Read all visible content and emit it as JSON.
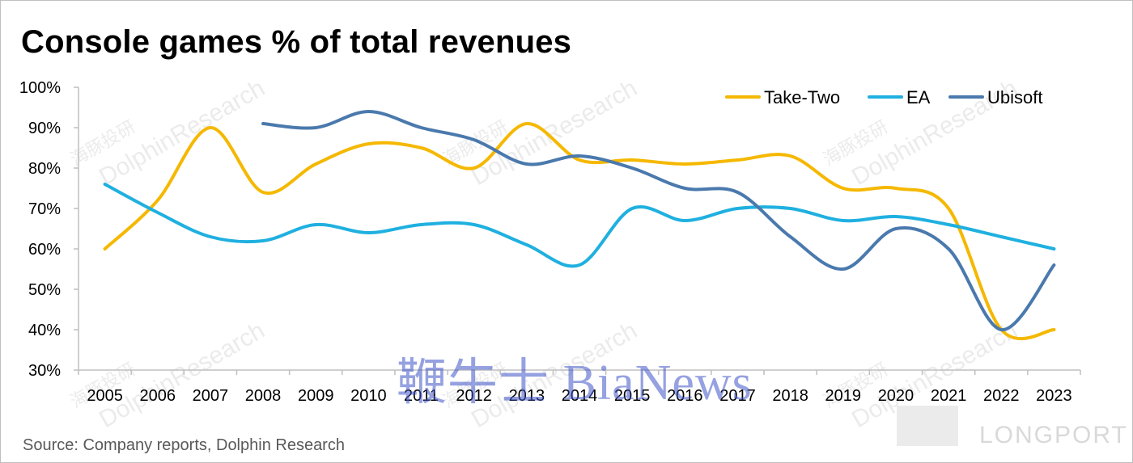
{
  "title": "Console games % of total revenues",
  "source": "Source: Company reports, Dolphin Research",
  "watermarks": {
    "dolphin_en": "DolphinResearch",
    "dolphin_cn": "海豚投研",
    "bianews": "鞭牛士 BiaNews",
    "longport": "LONGPORT"
  },
  "chart_data": {
    "type": "line",
    "title": "Console games % of total revenues",
    "xlabel": "",
    "ylabel": "",
    "x": [
      "2005",
      "2006",
      "2007",
      "2008",
      "2009",
      "2010",
      "2011",
      "2012",
      "2013",
      "2014",
      "2015",
      "2016",
      "2017",
      "2018",
      "2019",
      "2020",
      "2021",
      "2022",
      "2023"
    ],
    "ylim": [
      30,
      100
    ],
    "yticks": [
      "30%",
      "40%",
      "50%",
      "60%",
      "70%",
      "80%",
      "90%",
      "100%"
    ],
    "legend_position": "top-right",
    "grid": false,
    "series": [
      {
        "name": "Take-Two",
        "color": "#f5b800",
        "values": [
          60,
          72,
          90,
          74,
          81,
          86,
          85,
          80,
          91,
          82,
          82,
          81,
          82,
          83,
          75,
          75,
          70,
          40,
          40
        ]
      },
      {
        "name": "EA",
        "color": "#1fb0e0",
        "values": [
          76,
          69,
          63,
          62,
          66,
          64,
          66,
          66,
          61,
          56,
          70,
          67,
          70,
          70,
          67,
          68,
          66,
          63,
          60
        ]
      },
      {
        "name": "Ubisoft",
        "color": "#4a79ad",
        "values": [
          null,
          null,
          null,
          91,
          90,
          94,
          90,
          87,
          81,
          83,
          80,
          75,
          74,
          63,
          55,
          65,
          60,
          40,
          56
        ]
      }
    ]
  }
}
